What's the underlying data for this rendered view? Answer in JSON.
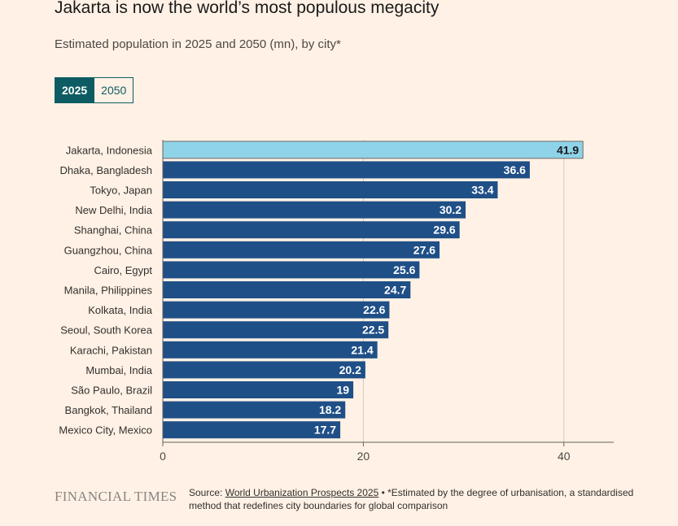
{
  "title": "Jakarta is now the world’s most populous megacity",
  "subtitle": "Estimated population in 2025 and 2050 (mn), by city*",
  "toggle": {
    "options": [
      "2025",
      "2050"
    ],
    "selected": "2025"
  },
  "colors": {
    "background": "#fff1e5",
    "bar": "#1f4f87",
    "highlight_bar": "#8fd3e8",
    "toggle_active": "#0d5c63"
  },
  "chart_data": {
    "type": "bar",
    "orientation": "horizontal",
    "categories": [
      "Jakarta, Indonesia",
      "Dhaka, Bangladesh",
      "Tokyo, Japan",
      "New Delhi, India",
      "Shanghai, China",
      "Guangzhou, China",
      "Cairo, Egypt",
      "Manila, Philippines",
      "Kolkata, India",
      "Seoul, South Korea",
      "Karachi, Pakistan",
      "Mumbai, India",
      "São Paulo, Brazil",
      "Bangkok, Thailand",
      "Mexico City, Mexico"
    ],
    "values": [
      41.9,
      36.6,
      33.4,
      30.2,
      29.6,
      27.6,
      25.6,
      24.7,
      22.6,
      22.5,
      21.4,
      20.2,
      19,
      18.2,
      17.7
    ],
    "highlighted": "Jakarta, Indonesia",
    "xlim": [
      0,
      45
    ],
    "xticks": [
      0,
      20,
      40
    ],
    "grid": true
  },
  "footer": {
    "logo": "FINANCIAL TIMES",
    "source_prefix": "Source: ",
    "source_link": "World Urbanization Prospects 2025",
    "source_note": " • *Estimated by the degree of urbanisation, a standardised method that redefines city boundaries for global comparison"
  }
}
